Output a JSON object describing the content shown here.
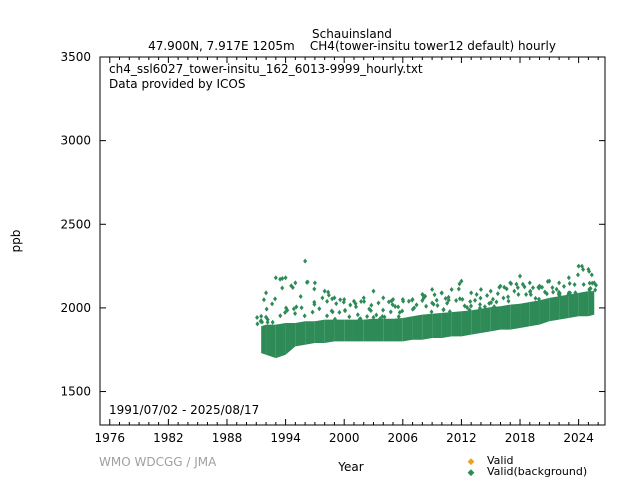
{
  "chart_data": {
    "type": "scatter",
    "title": "Schauinsland",
    "subtitle": "47.900N, 7.917E 1205m    CH4(tower-insitu tower12 default) hourly",
    "annotations": [
      "ch4_ssl6027_tower-insitu_162_6013-9999_hourly.txt",
      "Data provided by ICOS",
      "1991/07/02 - 2025/08/17"
    ],
    "credit": "WMO WDCGG / JMA",
    "xlabel": "Year",
    "ylabel": "ppb",
    "xlim": [
      1975,
      2026.7
    ],
    "ylim": [
      1300,
      3500
    ],
    "xticks": [
      1976,
      1982,
      1988,
      1994,
      2000,
      2006,
      2012,
      2018,
      2024
    ],
    "yticks": [
      1500,
      2000,
      2500,
      3000,
      3500
    ],
    "legend_placement": "bottom-right",
    "legend": [
      {
        "label": "Valid",
        "color": "#f0a020"
      },
      {
        "label": "Valid(background)",
        "color": "#2e8b57"
      }
    ],
    "series": [
      {
        "name": "Valid(background)",
        "note": "yearly envelope of hourly values: [year, low, median, high]",
        "values": [
          [
            1991.5,
            1730,
            1820,
            1950
          ],
          [
            1992,
            1720,
            1830,
            2090
          ],
          [
            1993,
            1700,
            1830,
            2180
          ],
          [
            1994,
            1720,
            1840,
            2180
          ],
          [
            1995,
            1770,
            1840,
            2150
          ],
          [
            1996,
            1780,
            1850,
            2280
          ],
          [
            1997,
            1790,
            1850,
            2150
          ],
          [
            1998,
            1790,
            1860,
            2100
          ],
          [
            1999,
            1800,
            1860,
            2060
          ],
          [
            2000,
            1800,
            1860,
            2050
          ],
          [
            2001,
            1800,
            1860,
            2040
          ],
          [
            2002,
            1800,
            1860,
            2060
          ],
          [
            2003,
            1800,
            1865,
            2100
          ],
          [
            2004,
            1800,
            1865,
            2060
          ],
          [
            2005,
            1800,
            1865,
            2050
          ],
          [
            2006,
            1800,
            1870,
            2050
          ],
          [
            2007,
            1810,
            1880,
            2050
          ],
          [
            2008,
            1810,
            1890,
            2080
          ],
          [
            2009,
            1820,
            1895,
            2110
          ],
          [
            2010,
            1820,
            1900,
            2090
          ],
          [
            2011,
            1830,
            1905,
            2110
          ],
          [
            2012,
            1830,
            1910,
            2160
          ],
          [
            2013,
            1840,
            1915,
            2090
          ],
          [
            2014,
            1850,
            1925,
            2110
          ],
          [
            2015,
            1860,
            1935,
            2100
          ],
          [
            2016,
            1870,
            1940,
            2130
          ],
          [
            2017,
            1870,
            1950,
            2150
          ],
          [
            2018,
            1880,
            1955,
            2190
          ],
          [
            2019,
            1890,
            1965,
            2150
          ],
          [
            2020,
            1900,
            1975,
            2130
          ],
          [
            2021,
            1920,
            1990,
            2160
          ],
          [
            2022,
            1930,
            2000,
            2150
          ],
          [
            2023,
            1940,
            2010,
            2180
          ],
          [
            2024,
            1950,
            2020,
            2250
          ],
          [
            2025,
            1950,
            2030,
            2230
          ],
          [
            2025.6,
            1960,
            2030,
            2150
          ]
        ]
      }
    ]
  }
}
